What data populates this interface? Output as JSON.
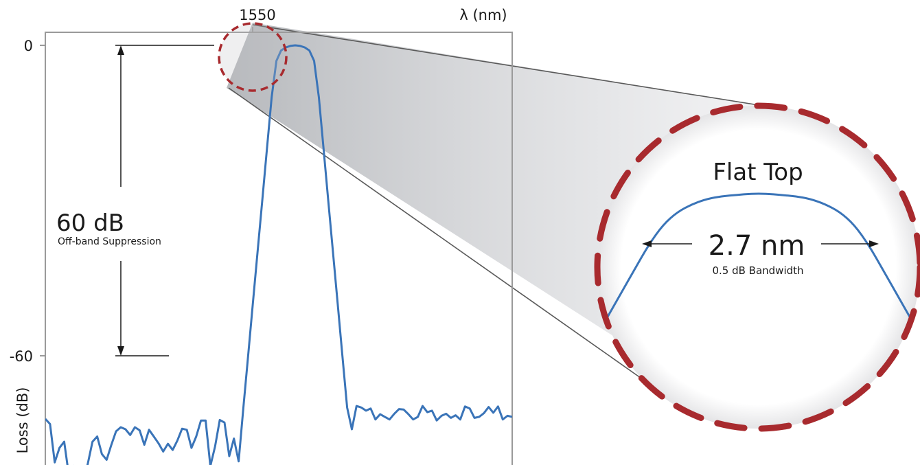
{
  "chart_data": {
    "type": "line",
    "xlabel": "λ (nm)",
    "ylabel": "Loss (dB)",
    "x_ticks": [
      "1550"
    ],
    "y_ticks": [
      "0",
      "-60"
    ],
    "ylim": [
      -82,
      0
    ],
    "grid": false,
    "colors": {
      "line": "#3a74b8",
      "magnifier": "#a82a2e",
      "axis": "#9a9a9a"
    },
    "annotations": {
      "suppression_value": "60 dB",
      "suppression_label": "Off-band Suppression",
      "flat_top_label": "Flat Top",
      "bandwidth_value": "2.7 nm",
      "bandwidth_label": "0.5 dB Bandwidth"
    },
    "series": [
      {
        "values": [
          -72.2,
          -73.2,
          -80.6,
          -77.8,
          -76.6,
          -83.1,
          -81.3,
          -81.8,
          -84.9,
          -80.9,
          -76.6,
          -75.6,
          -79.0,
          -80.1,
          -77.2,
          -74.6,
          -73.8,
          -74.2,
          -75.3,
          -73.8,
          -74.4,
          -77.2,
          -74.3,
          -75.6,
          -76.9,
          -78.5,
          -77.0,
          -78.2,
          -76.4,
          -74.1,
          -74.3,
          -77.8,
          -75.6,
          -72.5,
          -72.5,
          -81.3,
          -77.5,
          -72.4,
          -72.9,
          -79.4,
          -76.0,
          -80.4,
          -70.0,
          -60.0,
          -50.0,
          -40.0,
          -30.0,
          -20.0,
          -10.0,
          -3.0,
          -1.0,
          -0.4,
          -0.1,
          0.0,
          -0.1,
          -0.4,
          -1.0,
          -3.0,
          -10.0,
          -20.0,
          -30.0,
          -40.0,
          -50.0,
          -60.0,
          -70.0,
          -74.2,
          -69.7,
          -70.0,
          -70.6,
          -70.2,
          -72.3,
          -71.3,
          -71.8,
          -72.3,
          -71.2,
          -70.3,
          -70.4,
          -71.3,
          -72.3,
          -71.8,
          -69.7,
          -70.9,
          -70.6,
          -72.5,
          -71.6,
          -71.2,
          -72.0,
          -71.5,
          -72.3,
          -69.8,
          -70.2,
          -72.0,
          -71.8,
          -71.1,
          -69.9,
          -71.0,
          -69.8,
          -72.3,
          -71.6,
          -71.8
        ]
      }
    ],
    "zoom_series": {
      "values": [
        -0.5,
        -0.4,
        -0.3,
        -0.2,
        -0.12,
        -0.07,
        -0.04,
        -0.02,
        -0.01,
        -0.005,
        0.0,
        0.0,
        -0.005,
        -0.01,
        -0.02,
        -0.04,
        -0.07,
        -0.12,
        -0.2,
        -0.3,
        -0.4,
        -0.5
      ]
    }
  }
}
